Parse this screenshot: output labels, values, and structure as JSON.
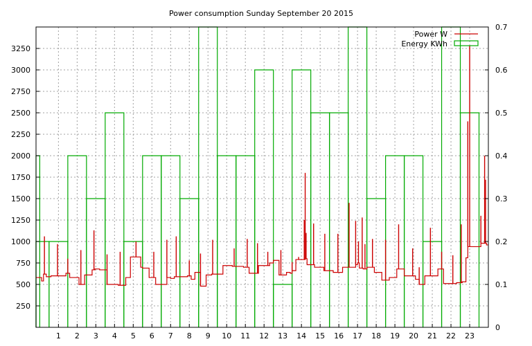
{
  "chart_data": {
    "type": "line",
    "title": "Power consumption Sunday September 20 2015",
    "xlabel": "",
    "ylabel": "",
    "xlim": [
      -0.2,
      24
    ],
    "x_ticks": [
      1,
      2,
      3,
      4,
      5,
      6,
      7,
      8,
      9,
      10,
      11,
      12,
      13,
      14,
      15,
      16,
      17,
      18,
      19,
      20,
      21,
      22,
      23
    ],
    "ylim": [
      0,
      3500
    ],
    "y_ticks": [
      250,
      500,
      750,
      1000,
      1250,
      1500,
      1750,
      2000,
      2250,
      2500,
      2750,
      3000,
      3250
    ],
    "y2lim": [
      0,
      0.7
    ],
    "y2_ticks": [
      0,
      0.1,
      0.2,
      0.3,
      0.4,
      0.5,
      0.6,
      0.7
    ],
    "grid": true,
    "legend_position": "top-right",
    "series": [
      {
        "name": "Power W",
        "axis": "left",
        "color": "#cc0000",
        "style": "steps",
        "x": [
          -0.2,
          0.1,
          0.2,
          0.35,
          0.6,
          1.4,
          1.6,
          2.1,
          2.4,
          2.8,
          2.95,
          3.2,
          3.6,
          4.2,
          4.6,
          4.85,
          5.4,
          5.5,
          5.85,
          6.2,
          6.8,
          7.0,
          7.2,
          7.9,
          8.1,
          8.3,
          8.6,
          8.9,
          9.2,
          9.8,
          10.3,
          10.9,
          11.2,
          11.7,
          12.3,
          12.5,
          12.8,
          13.2,
          13.4,
          13.5,
          13.7,
          14.2,
          14.3,
          14.7,
          15.2,
          15.7,
          16.2,
          16.9,
          17.0,
          17.1,
          17.3,
          17.5,
          17.9,
          18.3,
          18.7,
          19.1,
          19.5,
          20.1,
          20.3,
          20.6,
          21.3,
          21.6,
          22.3,
          22.6,
          22.8,
          22.9,
          23.6,
          23.9,
          24.0
        ],
        "y": [
          580,
          540,
          620,
          590,
          600,
          630,
          580,
          500,
          610,
          670,
          680,
          670,
          500,
          490,
          580,
          820,
          700,
          690,
          580,
          500,
          580,
          570,
          590,
          600,
          560,
          640,
          480,
          610,
          620,
          720,
          710,
          700,
          630,
          720,
          750,
          780,
          610,
          640,
          630,
          660,
          790,
          800,
          730,
          700,
          660,
          640,
          700,
          730,
          750,
          690,
          680,
          700,
          640,
          550,
          580,
          680,
          600,
          560,
          500,
          600,
          680,
          510,
          520,
          530,
          810,
          940,
          980,
          960,
          960
        ],
        "spikes": [
          [
            0.25,
            1060
          ],
          [
            0.95,
            970
          ],
          [
            1.5,
            800
          ],
          [
            2.2,
            900
          ],
          [
            2.9,
            1130
          ],
          [
            3.6,
            850
          ],
          [
            4.3,
            880
          ],
          [
            5.15,
            1000
          ],
          [
            6.1,
            880
          ],
          [
            6.8,
            1020
          ],
          [
            7.3,
            1060
          ],
          [
            8.0,
            780
          ],
          [
            8.6,
            860
          ],
          [
            9.25,
            1020
          ],
          [
            10.4,
            920
          ],
          [
            11.1,
            1030
          ],
          [
            11.65,
            980
          ],
          [
            12.2,
            880
          ],
          [
            12.9,
            900
          ],
          [
            13.5,
            760
          ],
          [
            13.85,
            820
          ],
          [
            14.15,
            1250
          ],
          [
            14.2,
            1800
          ],
          [
            14.25,
            1100
          ],
          [
            14.65,
            1210
          ],
          [
            15.25,
            1090
          ],
          [
            15.95,
            1090
          ],
          [
            16.55,
            1450
          ],
          [
            16.9,
            1240
          ],
          [
            17.05,
            1000
          ],
          [
            17.25,
            1280
          ],
          [
            17.4,
            970
          ],
          [
            17.8,
            1030
          ],
          [
            18.5,
            1020
          ],
          [
            19.2,
            1200
          ],
          [
            19.95,
            920
          ],
          [
            20.3,
            700
          ],
          [
            20.9,
            1160
          ],
          [
            21.5,
            880
          ],
          [
            22.1,
            840
          ],
          [
            22.55,
            1200
          ],
          [
            22.9,
            2400
          ],
          [
            23.0,
            3280
          ],
          [
            23.6,
            1300
          ],
          [
            23.8,
            2000
          ],
          [
            23.85,
            1720
          ]
        ]
      },
      {
        "name": "Energy KWh",
        "axis": "right",
        "color": "#00aa00",
        "style": "hourly-boxes",
        "x": [
          0,
          1,
          2,
          3,
          4,
          5,
          6,
          7,
          8,
          9,
          10,
          11,
          12,
          13,
          14,
          15,
          16,
          17,
          18,
          19,
          20,
          21,
          22,
          23
        ],
        "values": [
          0.2,
          0.2,
          0.4,
          0.3,
          0.5,
          0.2,
          0.4,
          0.4,
          0.3,
          0.7,
          0.4,
          0.4,
          0.6,
          0.1,
          0.6,
          0.5,
          0.5,
          0.7,
          0.3,
          0.4,
          0.4,
          0.2,
          0.7,
          0.5
        ],
        "first_box_value": 0.4
      }
    ]
  }
}
